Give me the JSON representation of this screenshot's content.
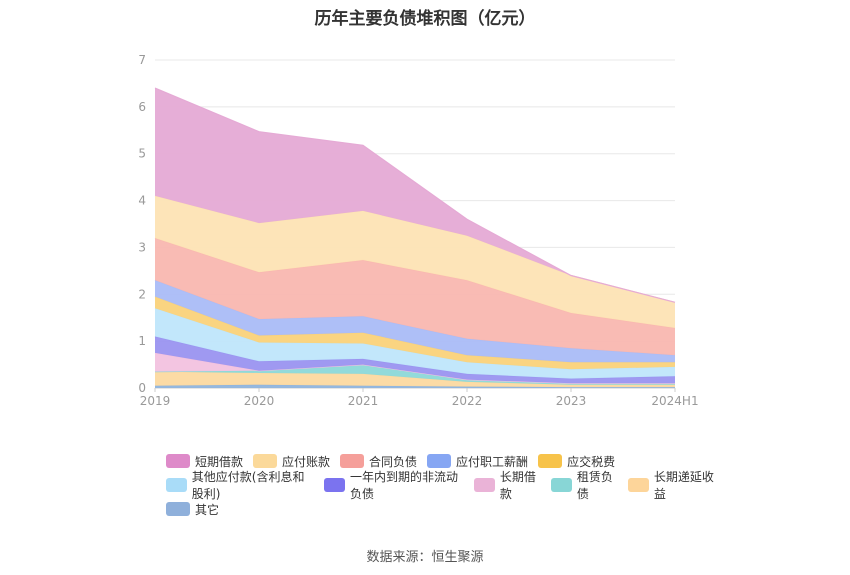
{
  "chart_data": {
    "type": "area",
    "title": "历年主要负债堆积图（亿元）",
    "categories": [
      "2019",
      "2020",
      "2021",
      "2022",
      "2023",
      "2024H1"
    ],
    "ylim": [
      0,
      7
    ],
    "yticks": [
      "0",
      "1",
      "2",
      "3",
      "4",
      "5",
      "6",
      "7"
    ],
    "stacked": true,
    "grid": true,
    "legend_position": "bottom",
    "series": [
      {
        "name": "其它",
        "color": "#8fb4dd",
        "values": [
          0.05,
          0.07,
          0.05,
          0.03,
          0.02,
          0.02
        ]
      },
      {
        "name": "长期递延收益",
        "color": "#fcd9a0",
        "values": [
          0.3,
          0.25,
          0.25,
          0.1,
          0.05,
          0.05
        ]
      },
      {
        "name": "租赁负债",
        "color": "#8cd8d8",
        "values": [
          0.0,
          0.05,
          0.2,
          0.05,
          0.03,
          0.03
        ]
      },
      {
        "name": "长期借款",
        "color": "#f2c2df",
        "values": [
          0.4,
          0.0,
          0.0,
          0.0,
          0.0,
          0.0
        ]
      },
      {
        "name": "一年内到期的非流动负债",
        "color": "#9a94f0",
        "values": [
          0.35,
          0.2,
          0.12,
          0.12,
          0.1,
          0.15
        ]
      },
      {
        "name": "其他应付款(含利息和股利)",
        "color": "#bfe6fb",
        "values": [
          0.6,
          0.4,
          0.33,
          0.25,
          0.2,
          0.2
        ]
      },
      {
        "name": "应交税费",
        "color": "#fad27a",
        "values": [
          0.25,
          0.15,
          0.23,
          0.15,
          0.15,
          0.1
        ]
      },
      {
        "name": "应付职工薪酬",
        "color": "#aabcf7",
        "values": [
          0.35,
          0.35,
          0.35,
          0.35,
          0.3,
          0.15
        ]
      },
      {
        "name": "合同负债",
        "color": "#f9b7b0",
        "values": [
          0.9,
          1.0,
          1.2,
          1.25,
          0.75,
          0.58
        ]
      },
      {
        "name": "应付账款",
        "color": "#fde3b4",
        "values": [
          0.9,
          1.05,
          1.05,
          0.95,
          0.8,
          0.55
        ]
      },
      {
        "name": "短期借款",
        "color": "#e5aad5",
        "values": [
          2.3,
          1.95,
          1.4,
          0.35,
          0.0,
          0.0
        ]
      }
    ]
  },
  "legend": {
    "rows": [
      [
        {
          "label": "短期借款",
          "color": "#de8ac9"
        },
        {
          "label": "应付账款",
          "color": "#fbd99a"
        },
        {
          "label": "合同负债",
          "color": "#f59f9a"
        },
        {
          "label": "应付职工薪酬",
          "color": "#86a6f3"
        },
        {
          "label": "应交税费",
          "color": "#f7c34a"
        }
      ],
      [
        {
          "label": "其他应付款(含利息和股利)",
          "color": "#a9dcf8"
        },
        {
          "label": "一年内到期的非流动负债",
          "color": "#7b73ef"
        },
        {
          "label": "长期借款",
          "color": "#eab3d7"
        },
        {
          "label": "租赁负债",
          "color": "#88d6d6"
        },
        {
          "label": "长期递延收益",
          "color": "#fdd59a"
        }
      ],
      [
        {
          "label": "其它",
          "color": "#8fb0db"
        }
      ]
    ]
  },
  "source": "数据来源：恒生聚源"
}
